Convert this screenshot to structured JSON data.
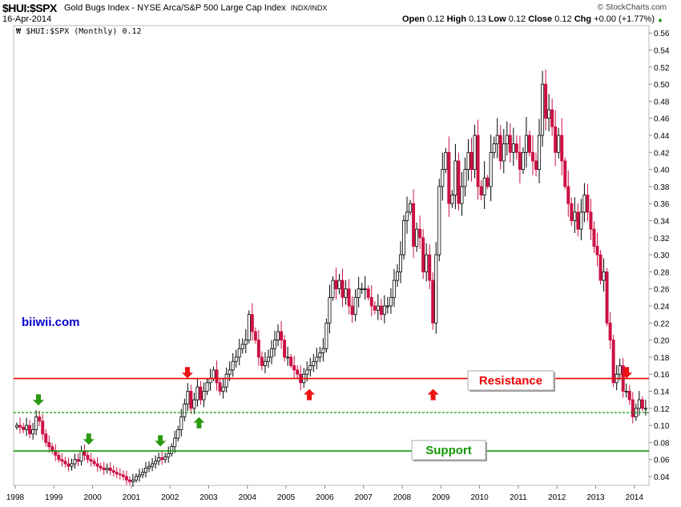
{
  "header": {
    "symbol": "$HUI:$SPX",
    "description": "Gold Bugs Index - NYSE Arca/S&P 500 Large Cap Index",
    "exchange": "INDX/INDX",
    "date": "16-Apr-2014",
    "brand": "© StockCharts.com",
    "open_label": "Open",
    "open": "0.12",
    "high_label": "High",
    "high": "0.13",
    "low_label": "Low",
    "low": "0.12",
    "close_label": "Close",
    "close": "0.12",
    "chg_label": "Chg",
    "chg": "+0.00 (+1.77%)",
    "chg_icon": "triangle-up-icon"
  },
  "legend": "$HUI:$SPX (Monthly) 0.12",
  "colors": {
    "down": "#cc1144",
    "up": "#000000",
    "resistance": "#ee0000",
    "support": "#119900",
    "watermark": "#0000cc"
  },
  "chart_data": {
    "type": "candlestick",
    "title": "$HUI:$SPX (Monthly)",
    "xlabel": "",
    "ylabel": "",
    "ylim": [
      0.03,
      0.57
    ],
    "start": "1998-01",
    "frequency": "monthly",
    "y_ticks": [
      0.04,
      0.06,
      0.08,
      0.1,
      0.12,
      0.14,
      0.16,
      0.18,
      0.2,
      0.22,
      0.24,
      0.26,
      0.28,
      0.3,
      0.32,
      0.34,
      0.36,
      0.38,
      0.4,
      0.42,
      0.44,
      0.46,
      0.48,
      0.5,
      0.52,
      0.54,
      0.56
    ],
    "x_ticks": [
      "1998",
      "1999",
      "2000",
      "2001",
      "2002",
      "2003",
      "2004",
      "2005",
      "2006",
      "2007",
      "2008",
      "2009",
      "2010",
      "2011",
      "2012",
      "2013",
      "2014"
    ],
    "closes": [
      0.1,
      0.098,
      0.095,
      0.1,
      0.09,
      0.095,
      0.11,
      0.105,
      0.09,
      0.08,
      0.075,
      0.07,
      0.065,
      0.06,
      0.058,
      0.055,
      0.052,
      0.055,
      0.06,
      0.058,
      0.07,
      0.065,
      0.06,
      0.058,
      0.055,
      0.052,
      0.05,
      0.048,
      0.05,
      0.047,
      0.045,
      0.043,
      0.042,
      0.04,
      0.036,
      0.034,
      0.036,
      0.04,
      0.042,
      0.045,
      0.05,
      0.052,
      0.055,
      0.058,
      0.062,
      0.06,
      0.063,
      0.067,
      0.075,
      0.085,
      0.095,
      0.11,
      0.125,
      0.14,
      0.12,
      0.13,
      0.145,
      0.13,
      0.14,
      0.15,
      0.155,
      0.165,
      0.15,
      0.14,
      0.145,
      0.16,
      0.165,
      0.175,
      0.18,
      0.19,
      0.195,
      0.2,
      0.23,
      0.21,
      0.2,
      0.18,
      0.17,
      0.175,
      0.18,
      0.19,
      0.2,
      0.21,
      0.2,
      0.18,
      0.18,
      0.17,
      0.165,
      0.16,
      0.15,
      0.16,
      0.165,
      0.17,
      0.175,
      0.18,
      0.185,
      0.19,
      0.22,
      0.25,
      0.27,
      0.26,
      0.27,
      0.25,
      0.26,
      0.24,
      0.23,
      0.25,
      0.26,
      0.26,
      0.26,
      0.25,
      0.24,
      0.235,
      0.24,
      0.23,
      0.24,
      0.24,
      0.25,
      0.27,
      0.28,
      0.3,
      0.34,
      0.35,
      0.36,
      0.31,
      0.33,
      0.32,
      0.28,
      0.3,
      0.27,
      0.22,
      0.3,
      0.38,
      0.4,
      0.42,
      0.36,
      0.37,
      0.41,
      0.36,
      0.38,
      0.4,
      0.42,
      0.4,
      0.44,
      0.38,
      0.37,
      0.39,
      0.38,
      0.42,
      0.43,
      0.44,
      0.41,
      0.43,
      0.44,
      0.42,
      0.43,
      0.42,
      0.4,
      0.42,
      0.44,
      0.42,
      0.41,
      0.4,
      0.44,
      0.5,
      0.46,
      0.47,
      0.45,
      0.42,
      0.44,
      0.41,
      0.38,
      0.36,
      0.34,
      0.35,
      0.33,
      0.35,
      0.37,
      0.35,
      0.33,
      0.31,
      0.3,
      0.27,
      0.28,
      0.22,
      0.2,
      0.15,
      0.16,
      0.17,
      0.14,
      0.14,
      0.13,
      0.11,
      0.12,
      0.13,
      0.12,
      0.12
    ],
    "horizontal_lines": [
      {
        "name": "resistance",
        "value": 0.155,
        "style": "solid"
      },
      {
        "name": "mid",
        "value": 0.115,
        "style": "dashed"
      },
      {
        "name": "support",
        "value": 0.07,
        "style": "solid"
      }
    ],
    "annotations": {
      "resistance_label": "Resistance",
      "support_label": "Support",
      "watermark": "biiwii.com"
    },
    "arrows": [
      {
        "date": 1998.6,
        "value": 0.128,
        "dir": "down",
        "color": "green"
      },
      {
        "date": 1999.9,
        "value": 0.082,
        "dir": "down",
        "color": "green"
      },
      {
        "date": 2001.75,
        "value": 0.08,
        "dir": "down",
        "color": "green"
      },
      {
        "date": 2002.75,
        "value": 0.105,
        "dir": "up",
        "color": "green"
      },
      {
        "date": 2002.45,
        "value": 0.16,
        "dir": "down",
        "color": "red"
      },
      {
        "date": 2005.6,
        "value": 0.138,
        "dir": "up",
        "color": "red"
      },
      {
        "date": 2008.8,
        "value": 0.138,
        "dir": "up",
        "color": "red"
      },
      {
        "date": 2013.8,
        "value": 0.16,
        "dir": "down",
        "color": "red"
      }
    ]
  }
}
